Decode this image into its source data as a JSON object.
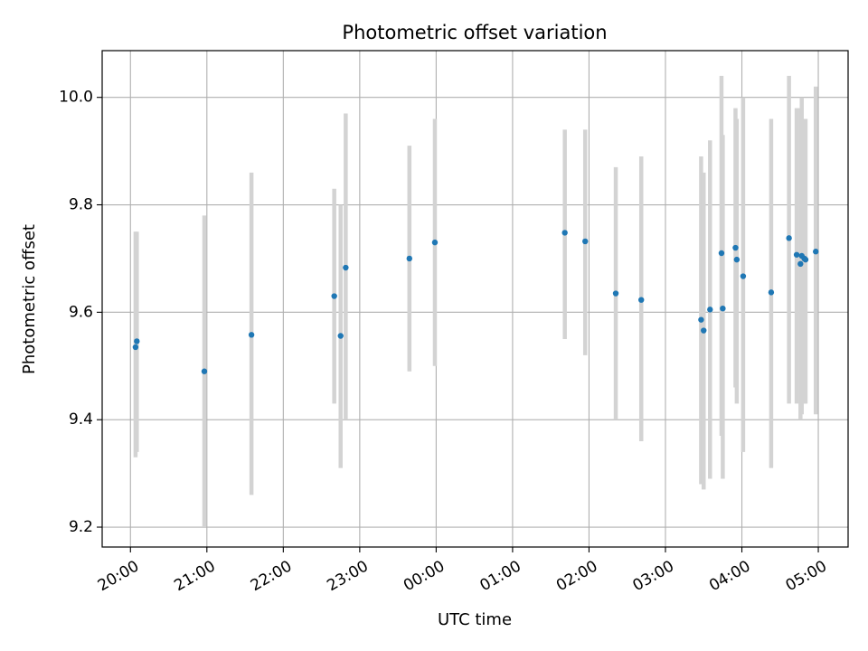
{
  "chart_data": {
    "type": "scatter",
    "title": "Photometric offset variation",
    "xlabel": "UTC time",
    "ylabel": "Photometric offset",
    "x_ticks": [
      "20:00",
      "21:00",
      "22:00",
      "23:00",
      "00:00",
      "01:00",
      "02:00",
      "03:00",
      "04:00",
      "05:00"
    ],
    "x_tick_hours": [
      20,
      21,
      22,
      23,
      24,
      25,
      26,
      27,
      28,
      29
    ],
    "y_ticks": [
      "9.2",
      "9.4",
      "9.6",
      "9.8",
      "10.0"
    ],
    "y_tick_values": [
      9.2,
      9.4,
      9.6,
      9.8,
      10.0
    ],
    "xlim_hours": [
      19.63,
      29.39
    ],
    "ylim": [
      9.163,
      10.087
    ],
    "grid": true,
    "point_color": "#1f77b4",
    "errorbar_color": "#d3d3d3",
    "series": [
      {
        "points": [
          {
            "time": "20:04",
            "y": 9.535,
            "err_low": 9.33,
            "err_high": 9.75
          },
          {
            "time": "20:05",
            "y": 9.546,
            "err_low": 9.34,
            "err_high": 9.75
          },
          {
            "time": "20:58",
            "y": 9.49,
            "err_low": 9.2,
            "err_high": 9.78
          },
          {
            "time": "21:35",
            "y": 9.558,
            "err_low": 9.26,
            "err_high": 9.86
          },
          {
            "time": "22:40",
            "y": 9.63,
            "err_low": 9.43,
            "err_high": 9.83
          },
          {
            "time": "22:45",
            "y": 9.556,
            "err_low": 9.31,
            "err_high": 9.8
          },
          {
            "time": "22:49",
            "y": 9.683,
            "err_low": 9.4,
            "err_high": 9.97
          },
          {
            "time": "23:39",
            "y": 9.7,
            "err_low": 9.49,
            "err_high": 9.91
          },
          {
            "time": "23:59",
            "y": 9.73,
            "err_low": 9.5,
            "err_high": 9.96
          },
          {
            "time": "01:41",
            "y": 9.748,
            "err_low": 9.55,
            "err_high": 9.94
          },
          {
            "time": "01:57",
            "y": 9.732,
            "err_low": 9.52,
            "err_high": 9.94
          },
          {
            "time": "02:21",
            "y": 9.635,
            "err_low": 9.4,
            "err_high": 9.87
          },
          {
            "time": "02:41",
            "y": 9.623,
            "err_low": 9.36,
            "err_high": 9.89
          },
          {
            "time": "03:28",
            "y": 9.586,
            "err_low": 9.28,
            "err_high": 9.89
          },
          {
            "time": "03:30",
            "y": 9.566,
            "err_low": 9.27,
            "err_high": 9.86
          },
          {
            "time": "03:35",
            "y": 9.605,
            "err_low": 9.29,
            "err_high": 9.92
          },
          {
            "time": "03:44",
            "y": 9.71,
            "err_low": 9.37,
            "err_high": 10.04
          },
          {
            "time": "03:45",
            "y": 9.607,
            "err_low": 9.29,
            "err_high": 9.93
          },
          {
            "time": "03:55",
            "y": 9.72,
            "err_low": 9.46,
            "err_high": 9.98
          },
          {
            "time": "03:56",
            "y": 9.698,
            "err_low": 9.43,
            "err_high": 9.96
          },
          {
            "time": "04:01",
            "y": 9.667,
            "err_low": 9.34,
            "err_high": 10.0
          },
          {
            "time": "04:23",
            "y": 9.637,
            "err_low": 9.31,
            "err_high": 9.96
          },
          {
            "time": "04:37",
            "y": 9.738,
            "err_low": 9.43,
            "err_high": 10.04
          },
          {
            "time": "04:43",
            "y": 9.707,
            "err_low": 9.43,
            "err_high": 9.98
          },
          {
            "time": "04:46",
            "y": 9.69,
            "err_low": 9.4,
            "err_high": 9.98
          },
          {
            "time": "04:47",
            "y": 9.705,
            "err_low": 9.41,
            "err_high": 10.0
          },
          {
            "time": "04:49",
            "y": 9.7,
            "err_low": 9.43,
            "err_high": 9.96
          },
          {
            "time": "04:50",
            "y": 9.698,
            "err_low": 9.43,
            "err_high": 9.96
          },
          {
            "time": "04:58",
            "y": 9.713,
            "err_low": 9.41,
            "err_high": 10.02
          }
        ]
      }
    ]
  }
}
